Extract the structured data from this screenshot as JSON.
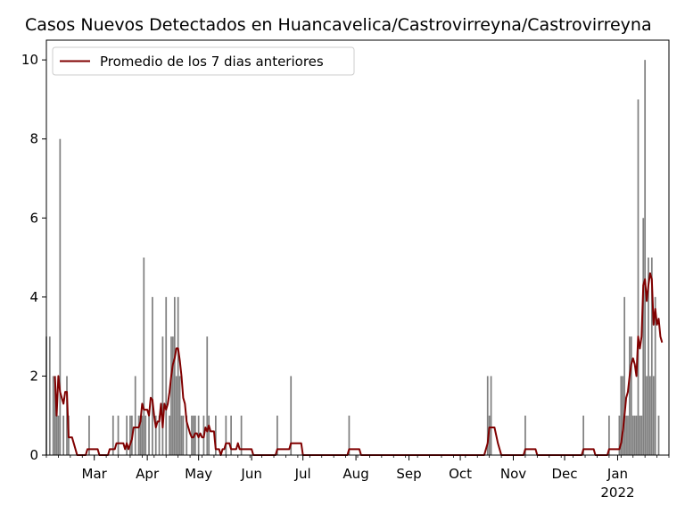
{
  "chart_data": {
    "type": "bar",
    "title": "Casos Nuevos Detectados en Huancavelica/Castrovirreyna/Castrovirreyna",
    "xlabel": "",
    "ylabel": "",
    "ylim": [
      0,
      10.5
    ],
    "x_range": [
      "2021-02-01",
      "2022-01-31"
    ],
    "yticks": [
      0,
      2,
      4,
      6,
      8,
      10
    ],
    "xticks": [
      {
        "date": "2021-03-01",
        "label": "Mar"
      },
      {
        "date": "2021-04-01",
        "label": "Apr"
      },
      {
        "date": "2021-05-01",
        "label": "May"
      },
      {
        "date": "2021-06-01",
        "label": "Jun"
      },
      {
        "date": "2021-07-01",
        "label": "Jul"
      },
      {
        "date": "2021-08-01",
        "label": "Aug"
      },
      {
        "date": "2021-09-01",
        "label": "Sep"
      },
      {
        "date": "2021-10-01",
        "label": "Oct"
      },
      {
        "date": "2021-11-01",
        "label": "Nov"
      },
      {
        "date": "2021-12-01",
        "label": "Dec"
      },
      {
        "date": "2022-01-01",
        "label": "Jan",
        "sublabel": "2022"
      }
    ],
    "grid": false,
    "legend_position": "top-left",
    "colors": {
      "bars": "#808080",
      "line": "#800000"
    },
    "series": [
      {
        "kind": "bar",
        "points": [
          [
            "2021-02-01",
            3
          ],
          [
            "2021-02-03",
            3
          ],
          [
            "2021-02-05",
            2
          ],
          [
            "2021-02-06",
            2
          ],
          [
            "2021-02-07",
            1
          ],
          [
            "2021-02-08",
            1
          ],
          [
            "2021-02-09",
            8
          ],
          [
            "2021-02-11",
            1
          ],
          [
            "2021-02-13",
            2
          ],
          [
            "2021-02-14",
            1
          ],
          [
            "2021-02-26",
            1
          ],
          [
            "2021-03-12",
            1
          ],
          [
            "2021-03-15",
            1
          ],
          [
            "2021-03-20",
            1
          ],
          [
            "2021-03-22",
            1
          ],
          [
            "2021-03-23",
            1
          ],
          [
            "2021-03-25",
            2
          ],
          [
            "2021-03-27",
            1
          ],
          [
            "2021-03-28",
            1
          ],
          [
            "2021-03-29",
            1
          ],
          [
            "2021-03-30",
            5
          ],
          [
            "2021-03-31",
            1
          ],
          [
            "2021-04-02",
            1
          ],
          [
            "2021-04-04",
            4
          ],
          [
            "2021-04-06",
            1
          ],
          [
            "2021-04-08",
            1
          ],
          [
            "2021-04-10",
            3
          ],
          [
            "2021-04-12",
            4
          ],
          [
            "2021-04-14",
            1
          ],
          [
            "2021-04-15",
            3
          ],
          [
            "2021-04-16",
            3
          ],
          [
            "2021-04-17",
            4
          ],
          [
            "2021-04-18",
            2
          ],
          [
            "2021-04-19",
            4
          ],
          [
            "2021-04-20",
            2
          ],
          [
            "2021-04-21",
            1
          ],
          [
            "2021-04-22",
            1
          ],
          [
            "2021-04-24",
            1
          ],
          [
            "2021-04-27",
            1
          ],
          [
            "2021-04-28",
            1
          ],
          [
            "2021-04-29",
            1
          ],
          [
            "2021-05-01",
            1
          ],
          [
            "2021-05-04",
            1
          ],
          [
            "2021-05-06",
            3
          ],
          [
            "2021-05-07",
            1
          ],
          [
            "2021-05-11",
            1
          ],
          [
            "2021-05-17",
            1
          ],
          [
            "2021-05-20",
            1
          ],
          [
            "2021-05-26",
            1
          ],
          [
            "2021-06-16",
            1
          ],
          [
            "2021-06-24",
            2
          ],
          [
            "2021-07-28",
            1
          ],
          [
            "2021-10-17",
            2
          ],
          [
            "2021-10-18",
            1
          ],
          [
            "2021-10-19",
            2
          ],
          [
            "2021-11-08",
            1
          ],
          [
            "2021-12-12",
            1
          ],
          [
            "2021-12-27",
            1
          ],
          [
            "2022-01-02",
            1
          ],
          [
            "2022-01-03",
            2
          ],
          [
            "2022-01-04",
            2
          ],
          [
            "2022-01-05",
            4
          ],
          [
            "2022-01-06",
            1
          ],
          [
            "2022-01-07",
            1
          ],
          [
            "2022-01-08",
            3
          ],
          [
            "2022-01-09",
            3
          ],
          [
            "2022-01-10",
            1
          ],
          [
            "2022-01-11",
            1
          ],
          [
            "2022-01-12",
            1
          ],
          [
            "2022-01-13",
            9
          ],
          [
            "2022-01-14",
            1
          ],
          [
            "2022-01-15",
            1
          ],
          [
            "2022-01-16",
            6
          ],
          [
            "2022-01-17",
            10
          ],
          [
            "2022-01-18",
            2
          ],
          [
            "2022-01-19",
            5
          ],
          [
            "2022-01-20",
            2
          ],
          [
            "2022-01-21",
            5
          ],
          [
            "2022-01-22",
            2
          ],
          [
            "2022-01-23",
            4
          ],
          [
            "2022-01-25",
            1
          ]
        ]
      },
      {
        "kind": "line",
        "name": "Promedio de los 7 dias anteriores",
        "points": [
          [
            "2021-02-06",
            2.0
          ],
          [
            "2021-02-07",
            1.0
          ],
          [
            "2021-02-08",
            2.0
          ],
          [
            "2021-02-09",
            1.6
          ],
          [
            "2021-02-11",
            1.3
          ],
          [
            "2021-02-12",
            1.6
          ],
          [
            "2021-02-13",
            1.6
          ],
          [
            "2021-02-14",
            0.45
          ],
          [
            "2021-02-16",
            0.45
          ],
          [
            "2021-02-17",
            0.3
          ],
          [
            "2021-02-19",
            0.0
          ],
          [
            "2021-02-24",
            0.0
          ],
          [
            "2021-02-25",
            0.15
          ],
          [
            "2021-03-03",
            0.15
          ],
          [
            "2021-03-04",
            0.0
          ],
          [
            "2021-03-09",
            0.0
          ],
          [
            "2021-03-10",
            0.15
          ],
          [
            "2021-03-13",
            0.15
          ],
          [
            "2021-03-14",
            0.3
          ],
          [
            "2021-03-18",
            0.3
          ],
          [
            "2021-03-19",
            0.15
          ],
          [
            "2021-03-20",
            0.3
          ],
          [
            "2021-03-21",
            0.15
          ],
          [
            "2021-03-23",
            0.4
          ],
          [
            "2021-03-24",
            0.7
          ],
          [
            "2021-03-27",
            0.7
          ],
          [
            "2021-03-28",
            0.85
          ],
          [
            "2021-03-29",
            1.3
          ],
          [
            "2021-03-30",
            1.15
          ],
          [
            "2021-04-01",
            1.15
          ],
          [
            "2021-04-02",
            1.0
          ],
          [
            "2021-04-03",
            1.45
          ],
          [
            "2021-04-04",
            1.4
          ],
          [
            "2021-04-05",
            1.0
          ],
          [
            "2021-04-06",
            0.7
          ],
          [
            "2021-04-07",
            0.85
          ],
          [
            "2021-04-08",
            0.85
          ],
          [
            "2021-04-09",
            1.3
          ],
          [
            "2021-04-10",
            0.7
          ],
          [
            "2021-04-11",
            1.3
          ],
          [
            "2021-04-12",
            1.15
          ],
          [
            "2021-04-13",
            1.3
          ],
          [
            "2021-04-14",
            1.6
          ],
          [
            "2021-04-15",
            2.0
          ],
          [
            "2021-04-16",
            2.3
          ],
          [
            "2021-04-17",
            2.45
          ],
          [
            "2021-04-18",
            2.7
          ],
          [
            "2021-04-19",
            2.7
          ],
          [
            "2021-04-20",
            2.4
          ],
          [
            "2021-04-21",
            2.0
          ],
          [
            "2021-04-22",
            1.45
          ],
          [
            "2021-04-23",
            1.3
          ],
          [
            "2021-04-24",
            0.85
          ],
          [
            "2021-04-25",
            0.7
          ],
          [
            "2021-04-26",
            0.55
          ],
          [
            "2021-04-27",
            0.45
          ],
          [
            "2021-04-28",
            0.45
          ],
          [
            "2021-04-29",
            0.55
          ],
          [
            "2021-04-30",
            0.55
          ],
          [
            "2021-05-01",
            0.45
          ],
          [
            "2021-05-02",
            0.55
          ],
          [
            "2021-05-03",
            0.45
          ],
          [
            "2021-05-04",
            0.45
          ],
          [
            "2021-05-05",
            0.7
          ],
          [
            "2021-05-06",
            0.6
          ],
          [
            "2021-05-07",
            0.75
          ],
          [
            "2021-05-08",
            0.6
          ],
          [
            "2021-05-10",
            0.6
          ],
          [
            "2021-05-11",
            0.15
          ],
          [
            "2021-05-13",
            0.15
          ],
          [
            "2021-05-14",
            0.0
          ],
          [
            "2021-05-15",
            0.15
          ],
          [
            "2021-05-16",
            0.15
          ],
          [
            "2021-05-17",
            0.3
          ],
          [
            "2021-05-19",
            0.3
          ],
          [
            "2021-05-20",
            0.15
          ],
          [
            "2021-05-23",
            0.15
          ],
          [
            "2021-05-24",
            0.3
          ],
          [
            "2021-05-25",
            0.15
          ],
          [
            "2021-06-01",
            0.15
          ],
          [
            "2021-06-02",
            0.0
          ],
          [
            "2021-06-15",
            0.0
          ],
          [
            "2021-06-16",
            0.15
          ],
          [
            "2021-06-23",
            0.15
          ],
          [
            "2021-06-24",
            0.3
          ],
          [
            "2021-06-30",
            0.3
          ],
          [
            "2021-07-01",
            0.0
          ],
          [
            "2021-07-27",
            0.0
          ],
          [
            "2021-07-28",
            0.15
          ],
          [
            "2021-08-03",
            0.15
          ],
          [
            "2021-08-04",
            0.0
          ],
          [
            "2021-10-15",
            0.0
          ],
          [
            "2021-10-17",
            0.3
          ],
          [
            "2021-10-18",
            0.7
          ],
          [
            "2021-10-21",
            0.7
          ],
          [
            "2021-10-23",
            0.3
          ],
          [
            "2021-10-25",
            0.0
          ],
          [
            "2021-11-07",
            0.0
          ],
          [
            "2021-11-08",
            0.15
          ],
          [
            "2021-11-14",
            0.15
          ],
          [
            "2021-11-15",
            0.0
          ],
          [
            "2021-12-11",
            0.0
          ],
          [
            "2021-12-12",
            0.15
          ],
          [
            "2021-12-18",
            0.15
          ],
          [
            "2021-12-19",
            0.0
          ],
          [
            "2021-12-26",
            0.0
          ],
          [
            "2021-12-27",
            0.15
          ],
          [
            "2022-01-02",
            0.15
          ],
          [
            "2022-01-03",
            0.3
          ],
          [
            "2022-01-04",
            0.6
          ],
          [
            "2022-01-05",
            1.0
          ],
          [
            "2022-01-06",
            1.45
          ],
          [
            "2022-01-07",
            1.6
          ],
          [
            "2022-01-08",
            2.0
          ],
          [
            "2022-01-09",
            2.3
          ],
          [
            "2022-01-10",
            2.45
          ],
          [
            "2022-01-11",
            2.3
          ],
          [
            "2022-01-12",
            2.0
          ],
          [
            "2022-01-13",
            3.0
          ],
          [
            "2022-01-14",
            2.7
          ],
          [
            "2022-01-15",
            3.0
          ],
          [
            "2022-01-16",
            4.3
          ],
          [
            "2022-01-17",
            4.45
          ],
          [
            "2022-01-18",
            3.9
          ],
          [
            "2022-01-19",
            4.3
          ],
          [
            "2022-01-20",
            4.6
          ],
          [
            "2022-01-21",
            4.45
          ],
          [
            "2022-01-22",
            3.3
          ],
          [
            "2022-01-23",
            3.7
          ],
          [
            "2022-01-24",
            3.3
          ],
          [
            "2022-01-25",
            3.45
          ],
          [
            "2022-01-26",
            3.0
          ],
          [
            "2022-01-27",
            2.85
          ]
        ]
      }
    ]
  }
}
